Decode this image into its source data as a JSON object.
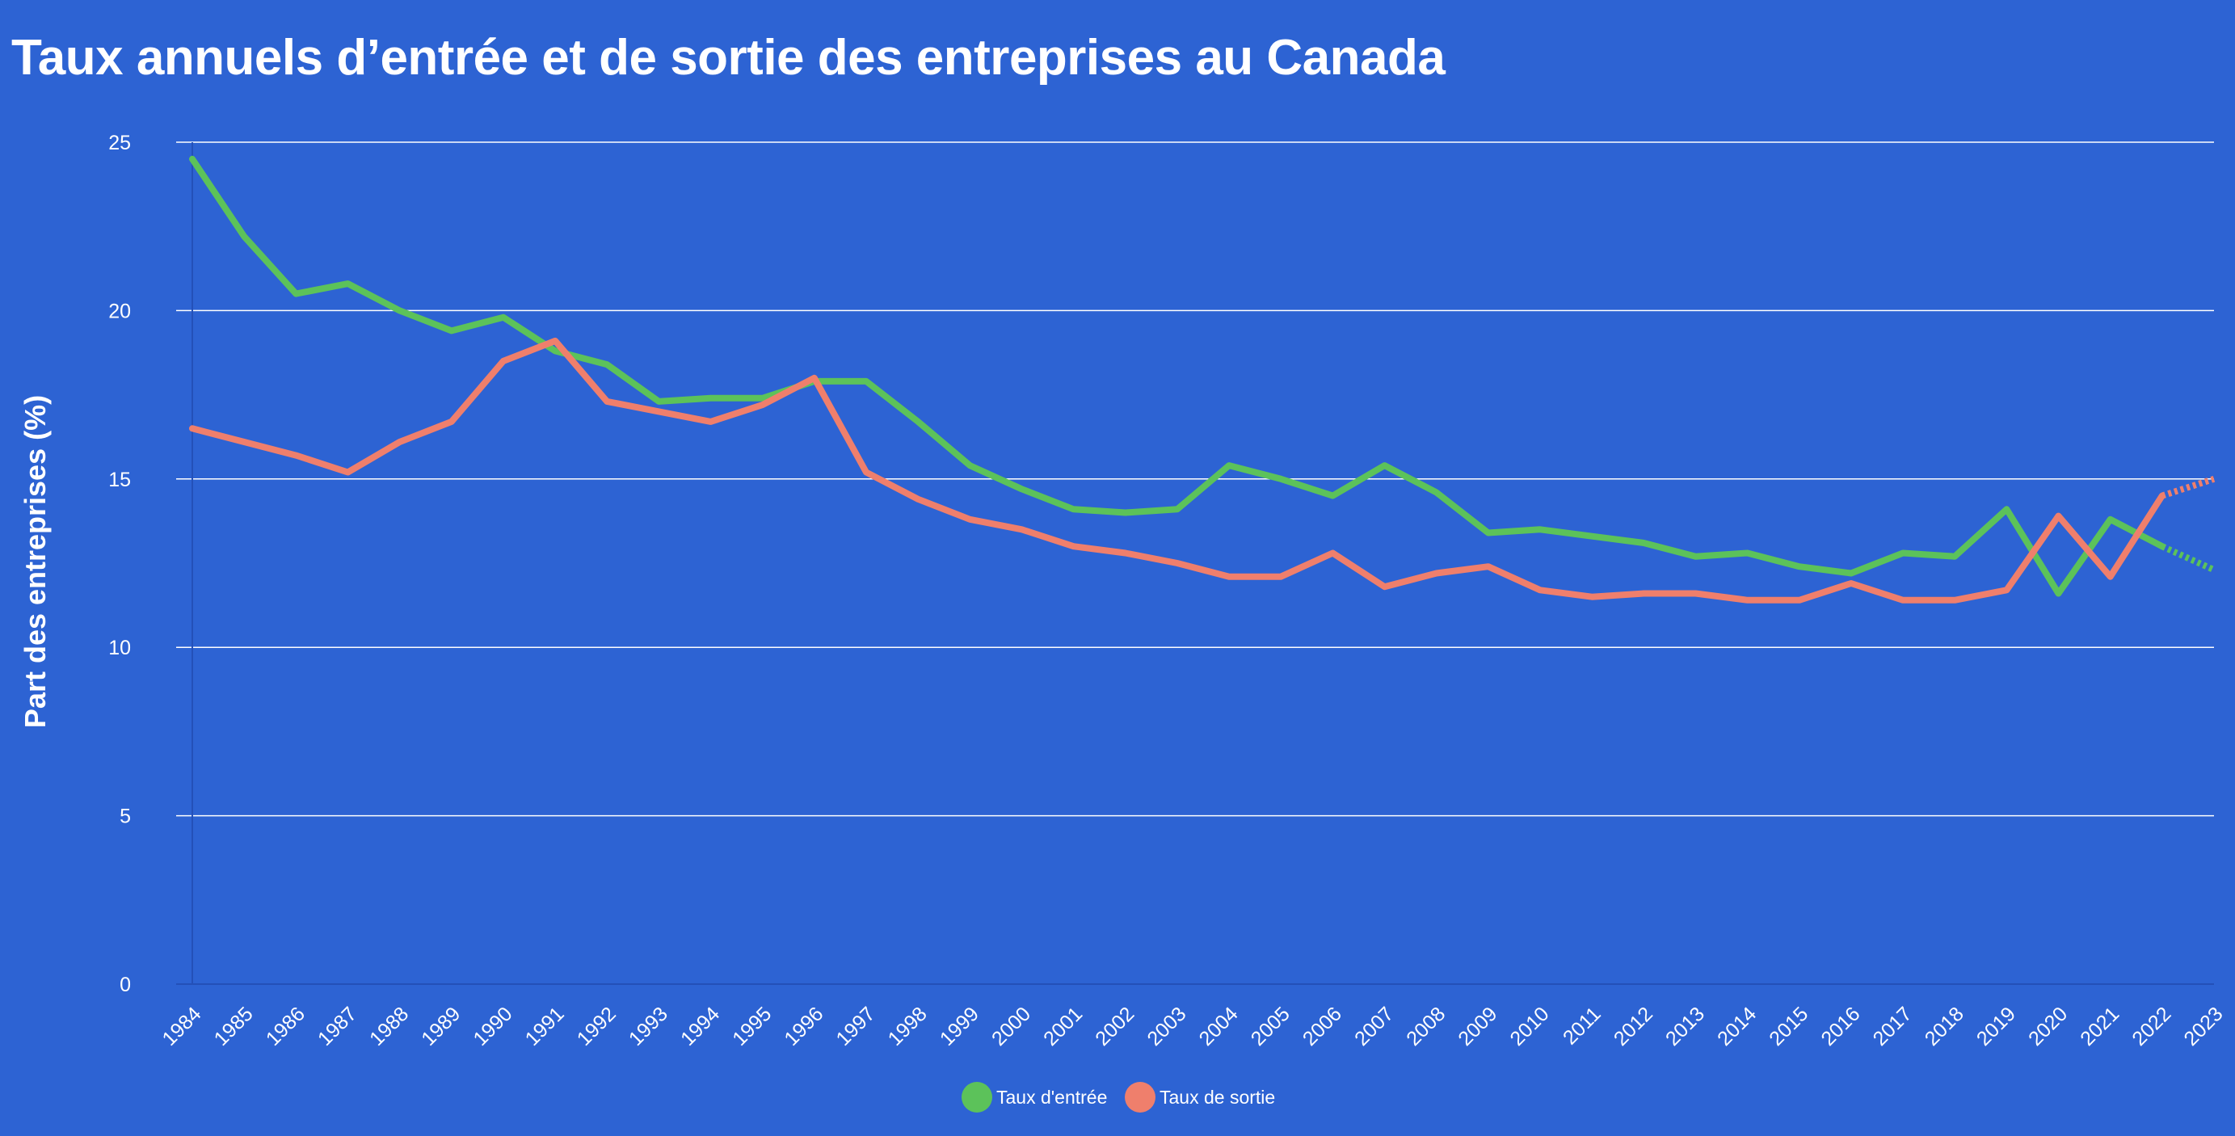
{
  "title": "Taux annuels d’entrée et de sortie des entreprises au Canada",
  "chart_data": {
    "type": "line",
    "title": "Taux annuels d’entrée et de sortie des entreprises au Canada",
    "xlabel": "",
    "ylabel": "Part des entreprises (%)",
    "ylim": [
      0,
      25
    ],
    "yticks": [
      0,
      5,
      10,
      15,
      20,
      25
    ],
    "grid": true,
    "legend_position": "bottom-center",
    "background_color": "#2d63d3",
    "categories": [
      "1984",
      "1985",
      "1986",
      "1987",
      "1988",
      "1989",
      "1990",
      "1991",
      "1992",
      "1993",
      "1994",
      "1995",
      "1996",
      "1997",
      "1998",
      "1999",
      "2000",
      "2001",
      "2002",
      "2003",
      "2004",
      "2005",
      "2006",
      "2007",
      "2008",
      "2009",
      "2010",
      "2011",
      "2012",
      "2013",
      "2014",
      "2015",
      "2016",
      "2017",
      "2018",
      "2019",
      "2020",
      "2021",
      "2022",
      "2023"
    ],
    "series": [
      {
        "name": "Taux d'entrée",
        "color": "#5cc25a",
        "values": [
          24.5,
          22.2,
          20.5,
          20.8,
          20.0,
          19.4,
          19.8,
          18.8,
          18.4,
          17.3,
          17.4,
          17.4,
          17.9,
          17.9,
          16.7,
          15.4,
          14.7,
          14.1,
          14.0,
          14.1,
          15.4,
          15.0,
          14.5,
          15.4,
          14.6,
          13.4,
          13.5,
          13.3,
          13.1,
          12.7,
          12.8,
          12.4,
          12.2,
          12.8,
          12.7,
          14.1,
          11.6,
          13.8,
          13.0,
          12.3
        ],
        "dotted_from": "2022"
      },
      {
        "name": "Taux de sortie",
        "color": "#ef7f6c",
        "values": [
          16.5,
          16.1,
          15.7,
          15.2,
          16.1,
          16.7,
          18.5,
          19.1,
          17.3,
          17.0,
          16.7,
          17.2,
          18.0,
          15.2,
          14.4,
          13.8,
          13.5,
          13.0,
          12.8,
          12.5,
          12.1,
          12.1,
          12.8,
          11.8,
          12.2,
          12.4,
          11.7,
          11.5,
          11.6,
          11.6,
          11.4,
          11.4,
          11.9,
          11.4,
          11.4,
          11.7,
          13.9,
          12.1,
          14.5,
          15.0
        ],
        "dotted_from": "2022"
      }
    ]
  }
}
